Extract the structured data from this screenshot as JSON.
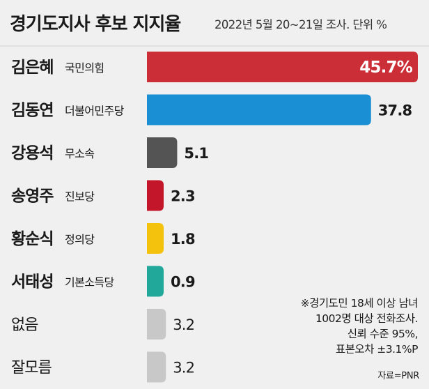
{
  "header": {
    "title": "경기도지사 후보 지지율",
    "subtitle": "2022년 5월 20~21일 조사. 단위 %"
  },
  "chart_data": {
    "type": "bar",
    "orientation": "horizontal",
    "title": "경기도지사 후보 지지율",
    "subtitle": "2022년 5월 20~21일 조사. 단위 %",
    "unit": "%",
    "categories": [
      "김은혜",
      "김동연",
      "강용석",
      "송영주",
      "황순식",
      "서태성",
      "없음",
      "잘모름"
    ],
    "parties": [
      "국민의힘",
      "더불어민주당",
      "무소속",
      "진보당",
      "정의당",
      "기본소득당",
      "",
      ""
    ],
    "values": [
      45.7,
      37.8,
      5.1,
      2.3,
      1.8,
      0.9,
      3.2,
      3.2
    ],
    "value_labels": [
      "45.7%",
      "37.8",
      "5.1",
      "2.3",
      "1.8",
      "0.9",
      "3.2",
      "3.2"
    ],
    "colors": [
      "#cc2e38",
      "#1a8fd4",
      "#545454",
      "#c4162a",
      "#f4c20d",
      "#21a89a",
      "#c8c8c8",
      "#c8c8c8"
    ],
    "bold_names": [
      true,
      true,
      true,
      true,
      true,
      true,
      false,
      false
    ],
    "xlim": [
      0,
      45.7
    ],
    "grid": false,
    "legend": "none"
  },
  "notes": {
    "lines": [
      "※경기도민 18세 이상 남녀",
      "1002명 대상 전화조사.",
      "신뢰 수준 95%,",
      "표본오차 ±3.1%P"
    ]
  },
  "source": "자료=PNR"
}
